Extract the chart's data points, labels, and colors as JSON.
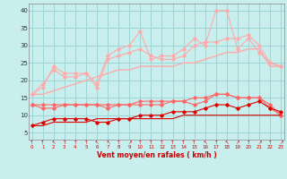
{
  "x": [
    0,
    1,
    2,
    3,
    4,
    5,
    6,
    7,
    8,
    9,
    10,
    11,
    12,
    13,
    14,
    15,
    16,
    17,
    18,
    19,
    20,
    21,
    22,
    23
  ],
  "line_light1": [
    16,
    19,
    23,
    21,
    21,
    22,
    18,
    26,
    27,
    28,
    29,
    27,
    26,
    26,
    27,
    30,
    31,
    31,
    32,
    32,
    33,
    30,
    25,
    24
  ],
  "line_light2": [
    16,
    18,
    24,
    22,
    22,
    22,
    19,
    27,
    29,
    30,
    34,
    26,
    27,
    27,
    29,
    32,
    30,
    40,
    40,
    29,
    32,
    28,
    25,
    24
  ],
  "line_lightest": [
    16,
    16,
    17,
    18,
    19,
    20,
    21,
    22,
    23,
    23,
    24,
    24,
    24,
    24,
    25,
    25,
    26,
    27,
    28,
    28,
    29,
    29,
    24,
    24
  ],
  "line_med1": [
    13,
    12,
    12,
    13,
    13,
    13,
    13,
    12,
    13,
    13,
    13,
    13,
    13,
    14,
    14,
    13,
    14,
    16,
    16,
    15,
    15,
    15,
    12,
    10
  ],
  "line_med2": [
    13,
    13,
    13,
    13,
    13,
    13,
    13,
    13,
    13,
    13,
    14,
    14,
    14,
    14,
    14,
    15,
    15,
    16,
    16,
    15,
    15,
    15,
    13,
    10
  ],
  "line_dark1": [
    7,
    8,
    9,
    9,
    9,
    9,
    8,
    8,
    9,
    9,
    10,
    10,
    10,
    11,
    11,
    11,
    12,
    13,
    13,
    12,
    13,
    14,
    12,
    11
  ],
  "line_dark2": [
    7,
    7,
    8,
    8,
    8,
    8,
    9,
    9,
    9,
    9,
    9,
    9,
    9,
    9,
    10,
    10,
    10,
    10,
    10,
    10,
    10,
    10,
    10,
    10
  ],
  "bg_color": "#c8eeed",
  "grid_color": "#9dd4d4",
  "color_light": "#ffaaaa",
  "color_medium": "#ff6666",
  "color_dark": "#dd0000",
  "xlabel": "Vent moyen/en rafales ( km/h )",
  "yticks": [
    5,
    10,
    15,
    20,
    25,
    30,
    35,
    40
  ],
  "xlim": [
    -0.3,
    23.3
  ],
  "ylim": [
    3,
    42
  ],
  "arrows": [
    "↑",
    "↑",
    "↖",
    "↑",
    "↑",
    "↑",
    "↖",
    "↖",
    "↑",
    "↗",
    "↑",
    "↑",
    "↑",
    "↑",
    "↑",
    "↑",
    "↖",
    "↑",
    "↖",
    "↗",
    "↑",
    "↗",
    "↑",
    "↗"
  ]
}
